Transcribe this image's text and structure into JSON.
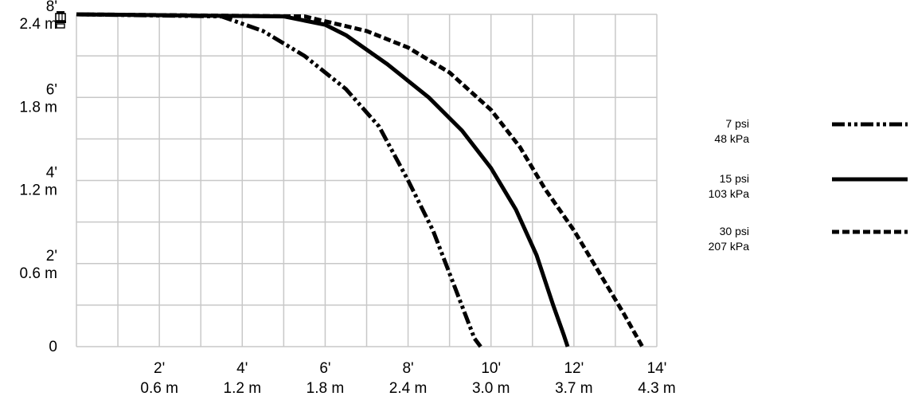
{
  "chart_data": {
    "type": "line",
    "title": "",
    "xlabel": "",
    "ylabel": "",
    "xlim": [
      0,
      14
    ],
    "ylim": [
      0,
      8
    ],
    "grid": true,
    "legend_position": "right",
    "x_ticks": [
      {
        "value": 2,
        "ft": "2'",
        "m": "0.6 m"
      },
      {
        "value": 4,
        "ft": "4'",
        "m": "1.2 m"
      },
      {
        "value": 6,
        "ft": "6'",
        "m": "1.8 m"
      },
      {
        "value": 8,
        "ft": "8'",
        "m": "2.4 m"
      },
      {
        "value": 10,
        "ft": "10'",
        "m": "3.0 m"
      },
      {
        "value": 12,
        "ft": "12'",
        "m": "3.7 m"
      },
      {
        "value": 14,
        "ft": "14'",
        "m": "4.3 m"
      }
    ],
    "y_ticks": [
      {
        "value": 0,
        "ft": "0",
        "m": ""
      },
      {
        "value": 2,
        "ft": "2'",
        "m": "0.6 m"
      },
      {
        "value": 4,
        "ft": "4'",
        "m": "1.2 m"
      },
      {
        "value": 6,
        "ft": "6'",
        "m": "1.8 m"
      },
      {
        "value": 8,
        "ft": "8'",
        "m": "2.4 m"
      }
    ],
    "series": [
      {
        "name": "7 psi",
        "name_metric": "48 kPa",
        "style": "dash-dot-dot",
        "points": [
          [
            0,
            8.0
          ],
          [
            3.5,
            7.95
          ],
          [
            4.5,
            7.6
          ],
          [
            5.5,
            7.0
          ],
          [
            6.5,
            6.2
          ],
          [
            7.3,
            5.3
          ],
          [
            8.0,
            4.0
          ],
          [
            8.6,
            2.8
          ],
          [
            9.1,
            1.5
          ],
          [
            9.6,
            0.2
          ],
          [
            9.75,
            0
          ]
        ]
      },
      {
        "name": "15 psi",
        "name_metric": "103 kPa",
        "style": "solid",
        "points": [
          [
            0,
            8.0
          ],
          [
            5.0,
            7.95
          ],
          [
            6.0,
            7.75
          ],
          [
            6.5,
            7.5
          ],
          [
            7.5,
            6.8
          ],
          [
            8.5,
            6.0
          ],
          [
            9.3,
            5.2
          ],
          [
            10.0,
            4.3
          ],
          [
            10.6,
            3.3
          ],
          [
            11.1,
            2.2
          ],
          [
            11.5,
            1.0
          ],
          [
            11.75,
            0.3
          ],
          [
            11.85,
            0
          ]
        ]
      },
      {
        "name": "30 psi",
        "name_metric": "207 kPa",
        "style": "dashed",
        "points": [
          [
            0,
            8.0
          ],
          [
            5.5,
            7.95
          ],
          [
            7.0,
            7.6
          ],
          [
            8.0,
            7.2
          ],
          [
            9.0,
            6.6
          ],
          [
            10.0,
            5.7
          ],
          [
            10.7,
            4.8
          ],
          [
            11.3,
            3.8
          ],
          [
            12.0,
            2.8
          ],
          [
            12.6,
            1.8
          ],
          [
            13.2,
            0.8
          ],
          [
            13.65,
            0
          ]
        ]
      }
    ]
  },
  "icons": {
    "sprinkler": "sprinkler-head-icon"
  }
}
